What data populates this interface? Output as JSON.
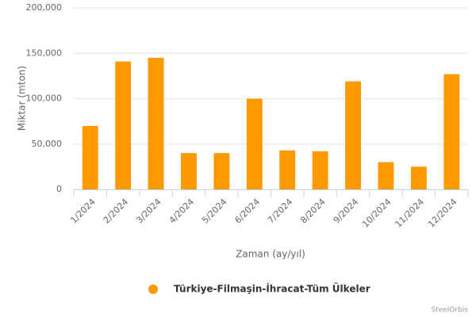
{
  "chart_data": {
    "type": "bar",
    "y_label": "Miktar (mton)",
    "x_label": "Zaman (ay/yıl)",
    "categories": [
      "1/2024",
      "2/2024",
      "3/2024",
      "4/2024",
      "5/2024",
      "6/2024",
      "7/2024",
      "8/2024",
      "9/2024",
      "10/2024",
      "11/2024",
      "12/2024"
    ],
    "series": [
      {
        "name": "Türkiye-Filmaşin-İhracat-Tüm Ülkeler",
        "color": "#ff9900",
        "values": [
          70000,
          141000,
          145000,
          40000,
          40000,
          100000,
          43000,
          42000,
          119000,
          30000,
          25000,
          127000
        ]
      }
    ],
    "ylim": [
      0,
      200000
    ],
    "yticks": [
      0,
      {
        "value": 50000,
        "label": "50,000"
      },
      {
        "value": 100000,
        "label": "100,000"
      },
      {
        "value": 150000,
        "label": "150,000"
      },
      {
        "value": 200000,
        "label": "200,000"
      }
    ],
    "grid": true,
    "credits": "SteelOrbis"
  }
}
